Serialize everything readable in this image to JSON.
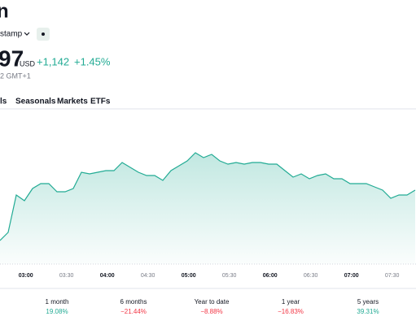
{
  "header": {
    "title": "n",
    "exchange": "stamp"
  },
  "price": {
    "value": "97",
    "currency": "USD",
    "change": "+1,142",
    "change_pct": "+1.45%",
    "time": "2 GMT+1"
  },
  "tabs": [
    "ls",
    "Seasonals",
    "Markets",
    "ETFs"
  ],
  "chart_data": {
    "type": "line",
    "color": "#22ab94",
    "x": [
      161,
      167,
      173,
      179,
      185,
      191,
      197,
      203,
      209,
      215,
      221,
      227,
      233,
      239,
      245,
      251,
      257,
      263,
      269,
      275,
      281,
      287,
      293,
      299,
      305,
      311,
      317,
      323,
      329,
      335,
      341,
      347,
      353,
      359,
      365,
      371,
      377,
      383,
      389,
      395,
      401,
      407,
      413,
      419,
      425,
      431,
      437,
      443,
      449,
      455,
      461,
      467
    ],
    "values": [
      29,
      39,
      85,
      78,
      93,
      99,
      99,
      89,
      89,
      93,
      113,
      111,
      113,
      115,
      115,
      125,
      119,
      113,
      109,
      109,
      103,
      115,
      121,
      127,
      137,
      131,
      135,
      127,
      123,
      125,
      123,
      125,
      125,
      123,
      123,
      115,
      107,
      111,
      105,
      109,
      111,
      105,
      105,
      99,
      99,
      99,
      95,
      91,
      81,
      85,
      85,
      91
    ],
    "xlim": [
      161,
      467
    ],
    "ylim": [
      0,
      190
    ],
    "xticks": [
      {
        "value": 180,
        "label": "03:00"
      },
      {
        "value": 210,
        "label": "03:30"
      },
      {
        "value": 240,
        "label": "04:00"
      },
      {
        "value": 270,
        "label": "04:30"
      },
      {
        "value": 300,
        "label": "05:00"
      },
      {
        "value": 330,
        "label": "05:30"
      },
      {
        "value": 360,
        "label": "06:00"
      },
      {
        "value": 390,
        "label": "06:30"
      },
      {
        "value": 420,
        "label": "07:00"
      },
      {
        "value": 450,
        "label": "07:30"
      }
    ]
  },
  "performance": [
    {
      "label": "1 month",
      "value": "19.08%"
    },
    {
      "label": "6 months",
      "value": "−21.44%"
    },
    {
      "label": "Year to date",
      "value": "−8.88%"
    },
    {
      "label": "1 year",
      "value": "−16.83%"
    },
    {
      "label": "5 years",
      "value": "39.31%"
    }
  ]
}
